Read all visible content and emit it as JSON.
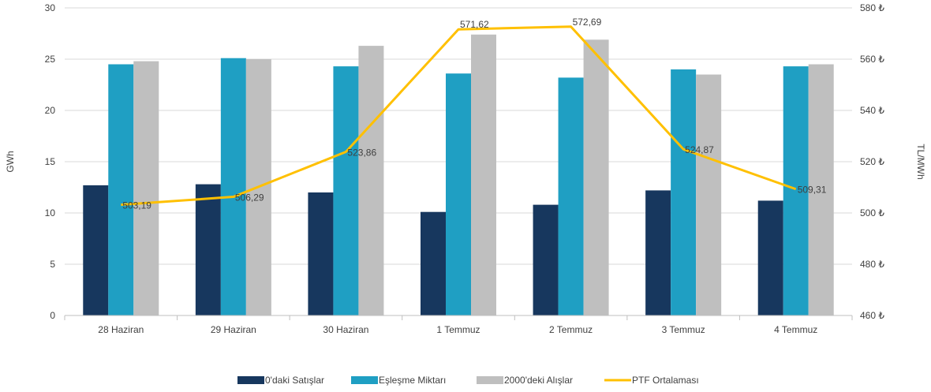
{
  "chart_data": {
    "type": "bar",
    "categories": [
      "28 Haziran",
      "29 Haziran",
      "30 Haziran",
      "1 Temmuz",
      "2 Temmuz",
      "3 Temmuz",
      "4 Temmuz"
    ],
    "series": [
      {
        "name": "0'daki Satışlar",
        "type": "bar",
        "axis": "left",
        "color": "#17375E",
        "values": [
          12.7,
          12.8,
          12.0,
          10.1,
          10.8,
          12.2,
          11.2
        ]
      },
      {
        "name": "Eşleşme Miktarı",
        "type": "bar",
        "axis": "left",
        "color": "#1F9FC3",
        "values": [
          24.5,
          25.1,
          24.3,
          23.6,
          23.2,
          24.0,
          24.3
        ]
      },
      {
        "name": "2000'deki Alışlar",
        "type": "bar",
        "axis": "left",
        "color": "#BFBFBF",
        "values": [
          24.8,
          25.0,
          26.3,
          27.4,
          26.9,
          23.5,
          24.5
        ]
      },
      {
        "name": "PTF Ortalaması",
        "type": "line",
        "axis": "right",
        "color": "#FFC000",
        "values": [
          503.19,
          506.29,
          523.86,
          571.62,
          572.69,
          524.87,
          509.31
        ],
        "data_labels": [
          "503,19",
          "506,29",
          "523,86",
          "571,62",
          "572,69",
          "524,87",
          "509,31"
        ]
      }
    ],
    "ylabel": "GWh",
    "ylim": [
      0,
      30
    ],
    "yticks": [
      "0",
      "5",
      "10",
      "15",
      "20",
      "25",
      "30"
    ],
    "y2label": "TL/MWh",
    "y2lim": [
      460,
      580
    ],
    "y2ticks": [
      "460 ₺",
      "480 ₺",
      "500 ₺",
      "520 ₺",
      "540 ₺",
      "560 ₺",
      "580 ₺"
    ],
    "grid": true,
    "legend_position": "bottom"
  }
}
